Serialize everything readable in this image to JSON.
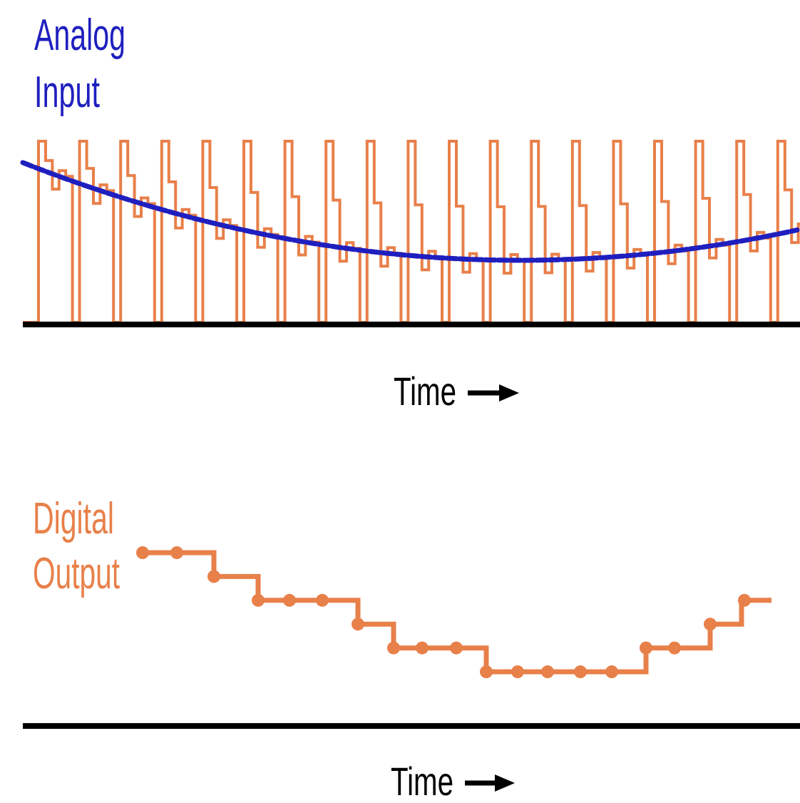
{
  "colors": {
    "analog": "#1f1fbf",
    "digital": "#e8804a",
    "axis": "#000000",
    "background": "#ffffff"
  },
  "top_panel": {
    "title_line1": "Analog",
    "title_line2": "Input",
    "time_label": "Time",
    "arrow_icon": "right-arrow-icon"
  },
  "bottom_panel": {
    "title_line1": "Digital",
    "title_line2": "Output",
    "time_label": "Time",
    "arrow_icon": "right-arrow-icon"
  },
  "chart_data": {
    "type": "line",
    "samples": [
      0,
      1,
      2,
      3,
      4,
      5,
      6,
      7,
      8,
      9,
      10,
      11,
      12,
      13,
      14,
      15,
      16,
      17
    ],
    "analog_curve_shape": "U-shaped, descending from left, minimum near middle, rising at right",
    "digital_output_levels": [
      8,
      8,
      7,
      6,
      6,
      6,
      5,
      4,
      4,
      4,
      3,
      3,
      3,
      3,
      3,
      4,
      4,
      5
    ],
    "level_range": [
      0,
      10
    ]
  }
}
